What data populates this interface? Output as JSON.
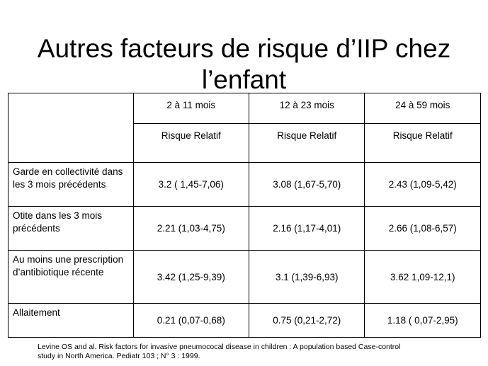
{
  "title": {
    "line1": "Autres facteurs de risque d’IIP chez",
    "line2": "l’enfant"
  },
  "table": {
    "columns": [
      "",
      "2 à 11 mois",
      "12 à 23 mois",
      "24 à 59 mois"
    ],
    "subheaders": [
      "",
      "Risque Relatif",
      "Risque Relatif",
      "Risque Relatif"
    ],
    "rows": [
      {
        "label": "Garde en collectivité dans les 3 mois précédents",
        "values": [
          "3.2 ( 1,45-7,06)",
          "3.08 (1,67-5,70)",
          "2.43 (1,09-5,42)"
        ]
      },
      {
        "label": "Otite dans les 3 mois précédents",
        "values": [
          "2.21 (1,03-4,75)",
          "2.16 (1,17-4,01)",
          "2.66 (1,08-6,57)"
        ]
      },
      {
        "label": "Au moins une prescription d’antibiotique récente",
        "values": [
          "3.42 (1,25-9,39)",
          "3.1 (1,39-6,93)",
          "3.62 1,09-12,1)"
        ]
      },
      {
        "label": "Allaitement",
        "values": [
          "0.21 (0,07-0,68)",
          "0.75 (0,21-2,72)",
          "1.18 ( 0,07-2,95)"
        ]
      }
    ]
  },
  "citation": {
    "line1": "Levine OS and al. Risk factors for invasive pneumococal disease in children : A population based Case-control",
    "line2": "study in North America. Pediatr 103 ;  N°  3 : 1999."
  }
}
